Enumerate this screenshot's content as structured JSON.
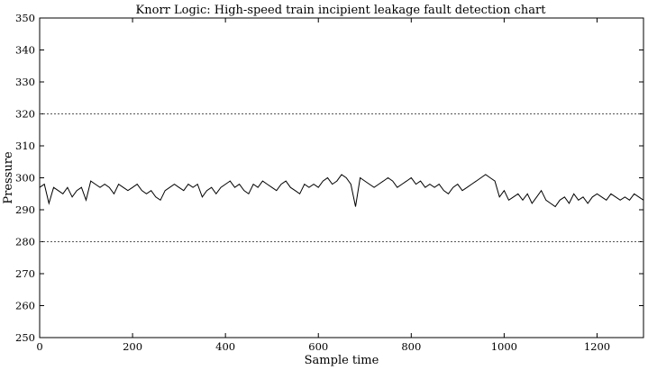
{
  "chart_data": {
    "type": "line",
    "title": "Knorr Logic: High-speed train incipient leakage fault detection chart",
    "xlabel": "Sample time",
    "ylabel": "Pressure",
    "xlim": [
      0,
      1300
    ],
    "ylim": [
      250,
      350
    ],
    "xticks": [
      0,
      200,
      400,
      600,
      800,
      1000,
      1200
    ],
    "yticks": [
      250,
      260,
      270,
      280,
      290,
      300,
      310,
      320,
      330,
      340,
      350
    ],
    "grid": false,
    "line_color": "#000000",
    "control_limits": {
      "upper": 320,
      "lower": 280,
      "style": "dotted",
      "color": "#555555"
    },
    "series": [
      {
        "x": [
          0,
          10,
          20,
          30,
          40,
          50,
          60,
          70,
          80,
          90,
          100,
          110,
          120,
          130,
          140,
          150,
          160,
          170,
          180,
          190,
          200,
          210,
          220,
          230,
          240,
          250,
          260,
          270,
          280,
          290,
          300,
          310,
          320,
          330,
          340,
          350,
          360,
          370,
          380,
          390,
          400,
          410,
          420,
          430,
          440,
          450,
          460,
          470,
          480,
          490,
          500,
          510,
          520,
          530,
          540,
          550,
          560,
          570,
          580,
          590,
          600,
          610,
          620,
          630,
          640,
          650,
          660,
          670,
          680,
          690,
          700,
          710,
          720,
          730,
          740,
          750,
          760,
          770,
          780,
          790,
          800,
          810,
          820,
          830,
          840,
          850,
          860,
          870,
          880,
          890,
          900,
          910,
          920,
          930,
          940,
          950,
          960,
          970,
          980,
          990,
          1000,
          1010,
          1020,
          1030,
          1040,
          1050,
          1060,
          1070,
          1080,
          1090,
          1100,
          1110,
          1120,
          1130,
          1140,
          1150,
          1160,
          1170,
          1180,
          1190,
          1200,
          1210,
          1220,
          1230,
          1240,
          1250,
          1260,
          1270,
          1280,
          1290,
          1300
        ],
        "values": [
          297,
          298,
          292,
          297,
          296,
          295,
          297,
          294,
          296,
          297,
          293,
          299,
          298,
          297,
          298,
          297,
          295,
          298,
          297,
          296,
          297,
          298,
          296,
          295,
          296,
          294,
          293,
          296,
          297,
          298,
          297,
          296,
          298,
          297,
          298,
          294,
          296,
          297,
          295,
          297,
          298,
          299,
          297,
          298,
          296,
          295,
          298,
          297,
          299,
          298,
          297,
          296,
          298,
          299,
          297,
          296,
          295,
          298,
          297,
          298,
          297,
          299,
          300,
          298,
          299,
          301,
          300,
          298,
          291,
          300,
          299,
          298,
          297,
          298,
          299,
          300,
          299,
          297,
          298,
          299,
          300,
          298,
          299,
          297,
          298,
          297,
          298,
          296,
          295,
          297,
          298,
          296,
          297,
          298,
          299,
          300,
          301,
          300,
          299,
          294,
          296,
          293,
          294,
          295,
          293,
          295,
          292,
          294,
          296,
          293,
          292,
          291,
          293,
          294,
          292,
          295,
          293,
          294,
          292,
          294,
          295,
          294,
          293,
          295,
          294,
          293,
          294,
          293,
          295,
          294,
          293
        ]
      }
    ]
  }
}
